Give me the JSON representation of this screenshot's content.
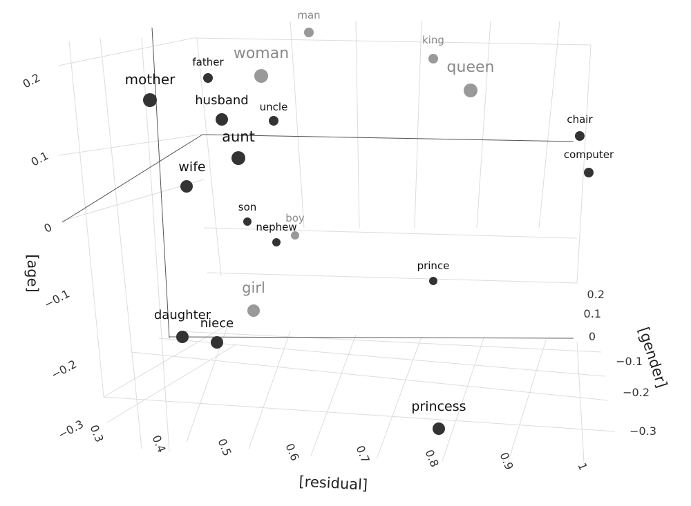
{
  "chart_data": {
    "type": "scatter",
    "axes": {
      "x": {
        "label": "[residual]",
        "ticks": [
          "0.3",
          "0.4",
          "0.5",
          "0.6",
          "0.7",
          "0.8",
          "0.9",
          "1"
        ]
      },
      "y": {
        "label": "[gender]",
        "ticks": [
          "0.2",
          "0.1",
          "0",
          "−0.1",
          "−0.2",
          "−0.3"
        ]
      },
      "z": {
        "label": "[age]",
        "ticks": [
          "0.2",
          "0.1",
          "0",
          "−0.1",
          "−0.2",
          "−0.3"
        ]
      }
    },
    "grid": true,
    "colors": {
      "dark": "#333333",
      "light": "#999999"
    },
    "points": [
      {
        "label": "man",
        "tone": "light",
        "size": "small"
      },
      {
        "label": "king",
        "tone": "light",
        "size": "small"
      },
      {
        "label": "woman",
        "tone": "light",
        "size": "large"
      },
      {
        "label": "queen",
        "tone": "light",
        "size": "large"
      },
      {
        "label": "father",
        "tone": "dark",
        "size": "small"
      },
      {
        "label": "mother",
        "tone": "dark",
        "size": "large"
      },
      {
        "label": "husband",
        "tone": "dark",
        "size": "medium"
      },
      {
        "label": "uncle",
        "tone": "dark",
        "size": "small"
      },
      {
        "label": "aunt",
        "tone": "dark",
        "size": "large"
      },
      {
        "label": "chair",
        "tone": "dark",
        "size": "small"
      },
      {
        "label": "computer",
        "tone": "dark",
        "size": "small"
      },
      {
        "label": "wife",
        "tone": "dark",
        "size": "medium"
      },
      {
        "label": "son",
        "tone": "dark",
        "size": "xsmall"
      },
      {
        "label": "boy",
        "tone": "light",
        "size": "xsmall"
      },
      {
        "label": "nephew",
        "tone": "dark",
        "size": "xsmall"
      },
      {
        "label": "prince",
        "tone": "dark",
        "size": "xsmall"
      },
      {
        "label": "girl",
        "tone": "light",
        "size": "medium"
      },
      {
        "label": "daughter",
        "tone": "dark",
        "size": "medium"
      },
      {
        "label": "niece",
        "tone": "dark",
        "size": "medium"
      },
      {
        "label": "princess",
        "tone": "dark",
        "size": "medium"
      }
    ]
  }
}
